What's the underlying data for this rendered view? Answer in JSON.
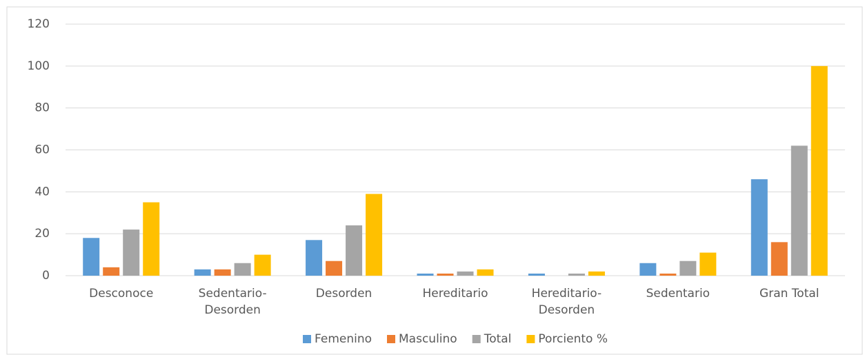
{
  "chart_data": {
    "type": "bar",
    "categories": [
      "Desconoce",
      "Sedentario-Desorden",
      "Desorden",
      "Hereditario",
      "Hereditario-Desorden",
      "Sedentario",
      "Gran Total"
    ],
    "series": [
      {
        "name": "Femenino",
        "color": "#5b9bd5",
        "values": [
          18,
          3,
          17,
          1,
          1,
          6,
          46
        ]
      },
      {
        "name": "Masculino",
        "color": "#ed7d31",
        "values": [
          4,
          3,
          7,
          1,
          0,
          1,
          16
        ]
      },
      {
        "name": "Total",
        "color": "#a5a5a5",
        "values": [
          22,
          6,
          24,
          2,
          1,
          7,
          62
        ]
      },
      {
        "name": "Porciento %",
        "color": "#ffc000",
        "values": [
          35,
          10,
          39,
          3,
          2,
          11,
          100
        ]
      }
    ],
    "ylim": [
      0,
      120
    ],
    "yticks": [
      0,
      20,
      40,
      60,
      80,
      100,
      120
    ],
    "grid": true,
    "legend": "bottom"
  }
}
